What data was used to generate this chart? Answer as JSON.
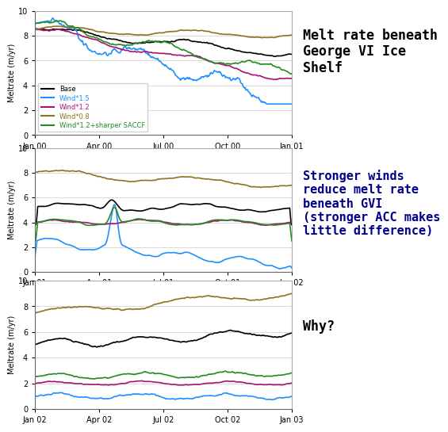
{
  "title1": "Melt rate beneath\nGeorge VI Ice\nShelf",
  "title2": "Stronger winds\nreduce melt rate\nbeneath GVI\n(stronger ACC makes\nlittle difference)",
  "title3": "Why?",
  "title1_color": "#000000",
  "title2_color": "#00008B",
  "title3_color": "#000000",
  "ylabel": "Meltrate (m/yr)",
  "ylim": [
    0,
    10
  ],
  "yticks": [
    0,
    2,
    4,
    6,
    8,
    10
  ],
  "colors": {
    "Base": "#000000",
    "Wind*1.5": "#1E90FF",
    "Wind*1.2": "#AA1177",
    "Wind*0.8": "#8B7320",
    "Wind*1.2+sharper SACCF": "#228B22"
  },
  "legend_labels": [
    "Base",
    "Wind*1.5",
    "Wind*1.2",
    "Wind*0.8",
    "Wind*1.2+sharper SACCF"
  ],
  "panel1_xticks": [
    "Jan 00",
    "Apr 00",
    "Jul 00",
    "Oct 00",
    "Jan 01"
  ],
  "panel2_xticks": [
    "Jan 01",
    "Apr 01",
    "Jul 01",
    "Oct 01",
    "Jan 02"
  ],
  "panel3_xticks": [
    "Jan 02",
    "Apr 02",
    "Jul 02",
    "Oct 02",
    "Jan 03"
  ],
  "background_color": "#ffffff",
  "n_points": 365
}
